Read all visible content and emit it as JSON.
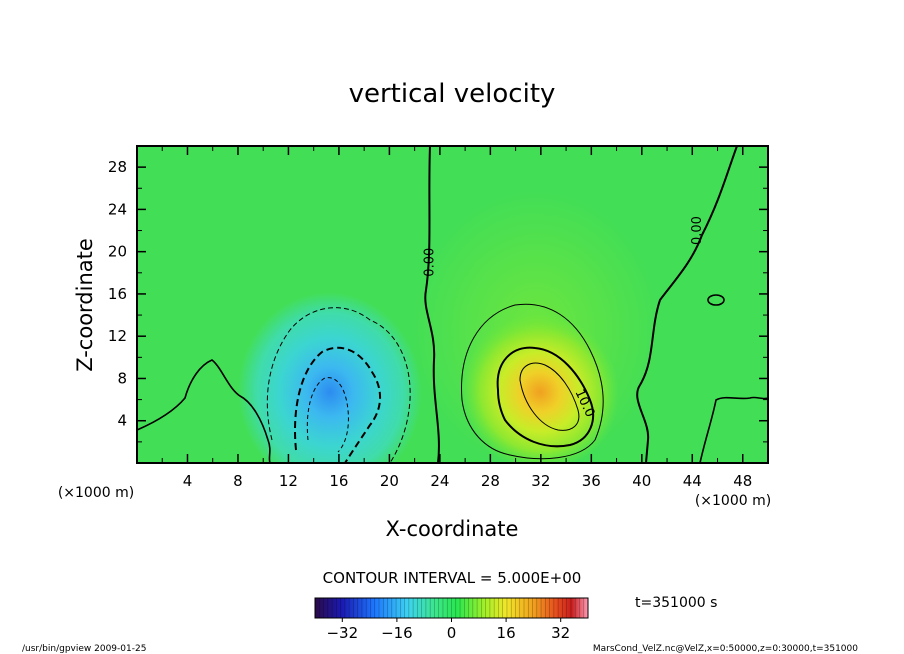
{
  "chart_data": {
    "type": "heatmap",
    "title": "vertical velocity",
    "xlabel": "X-coordinate",
    "ylabel": "Z-coordinate",
    "x_unit": "(×1000 m)",
    "y_unit": "(×1000 m)",
    "xlim": [
      0,
      50
    ],
    "ylim": [
      0,
      30
    ],
    "x_ticks": [
      4,
      8,
      12,
      16,
      20,
      24,
      28,
      32,
      36,
      40,
      44,
      48
    ],
    "y_ticks": [
      4,
      8,
      12,
      16,
      20,
      24,
      28
    ],
    "contour_interval_text": "CONTOUR INTERVAL = 5.000E+00",
    "contour_labels": [
      {
        "text": "0.00",
        "x": 23.5,
        "y": 19
      },
      {
        "text": "0.00",
        "x": 44.7,
        "y": 22
      },
      {
        "text": "10.0",
        "x": 35.2,
        "y": 5.5
      }
    ],
    "features": [
      {
        "kind": "downdraft",
        "x": 15,
        "y": 5,
        "value": -20
      },
      {
        "kind": "updraft",
        "x": 33,
        "y": 6.5,
        "value": 22
      }
    ],
    "colorbar": {
      "range": [
        -40,
        40
      ],
      "ticks": [
        -32,
        -16,
        0,
        16,
        32
      ],
      "colors": [
        "#2a0a4a",
        "#1a1ab4",
        "#1e78ff",
        "#3cd2f0",
        "#3ce68c",
        "#28e650",
        "#a0f028",
        "#f0e628",
        "#f0a01e",
        "#e6501e",
        "#c81e1e",
        "#ff9ab4"
      ]
    },
    "time_label": "t=351000 s"
  },
  "footer": {
    "left": "/usr/bin/gpview  2009-01-25",
    "right": "MarsCond_VelZ.nc@VelZ,x=0:50000,z=0:30000,t=351000"
  }
}
